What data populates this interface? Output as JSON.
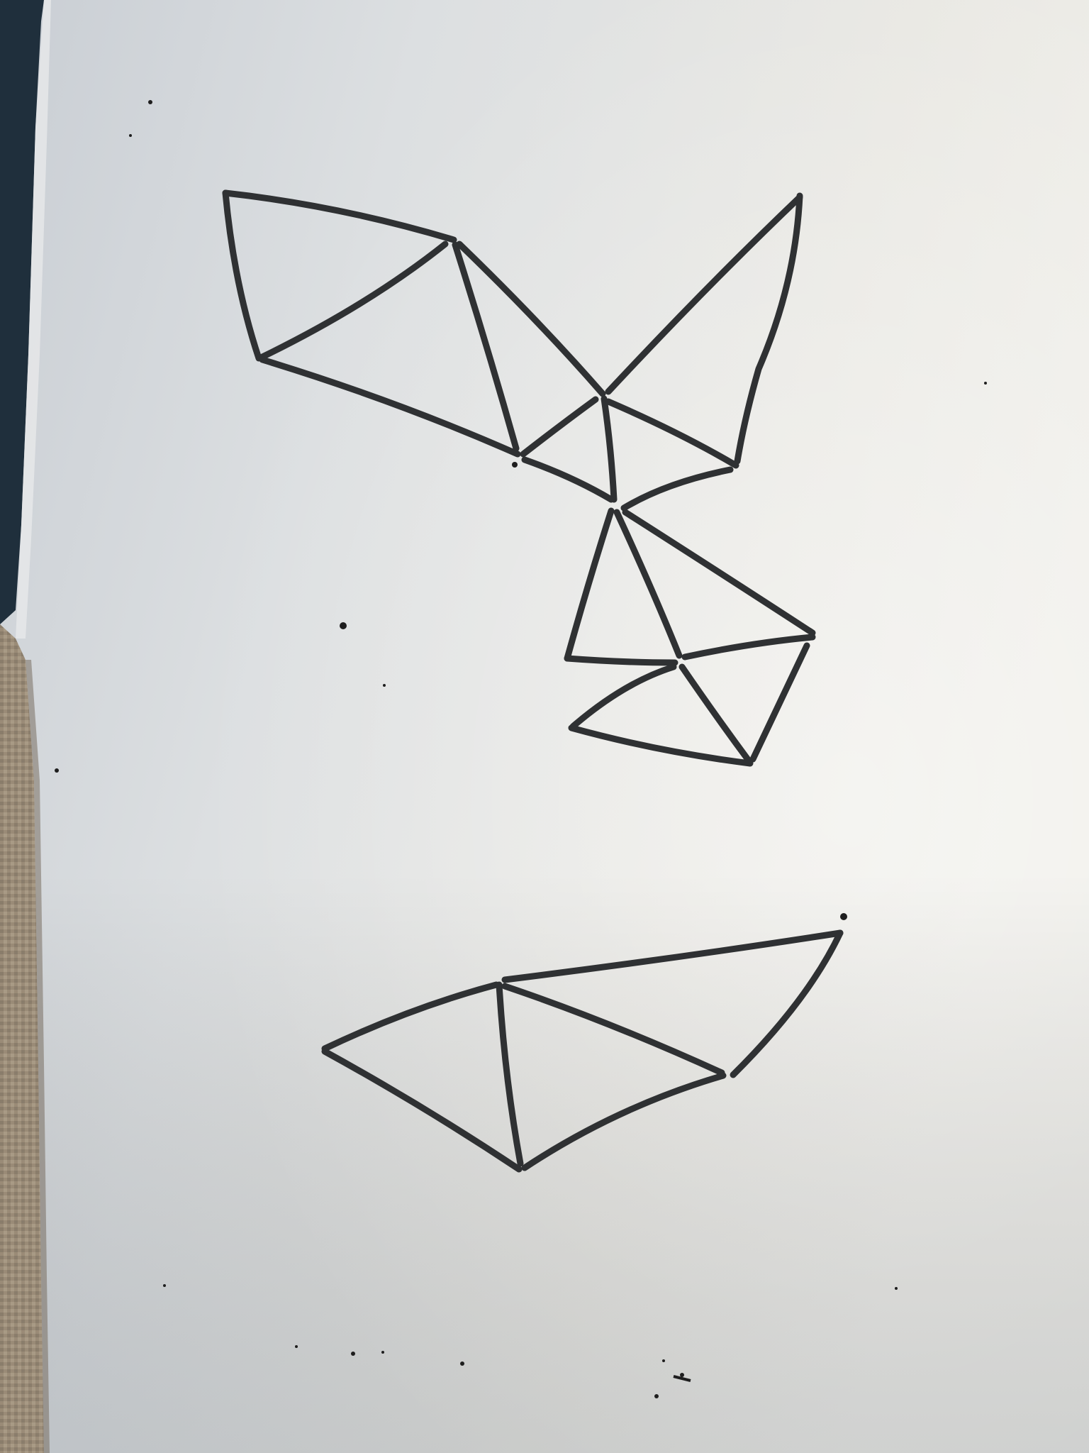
{
  "photo": {
    "subject": "whiteboard",
    "colors": {
      "board_light": "#eeeeea",
      "board_mid": "#d6d9dc",
      "board_shadow": "#b6bbc2",
      "frame_dark": "#1f2f3c",
      "frame_edge": "#3a4a56",
      "fabric": "#9a8b77",
      "fabric_dark": "#6f6455",
      "marker_ink": "#2f3133",
      "marker_highlight": "#5a5c5e",
      "speck": "#1e1e1e"
    }
  }
}
